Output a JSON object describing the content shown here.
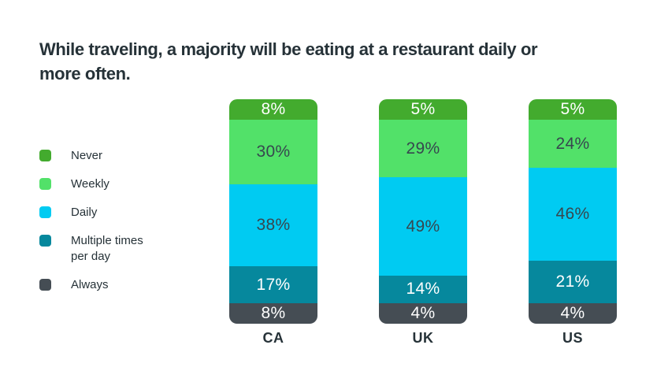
{
  "title": {
    "lines": [
      "While traveling, a majority will be eating at a restaurant daily or",
      "more often."
    ],
    "color": "#263238"
  },
  "legend": {
    "position": "left",
    "items": [
      {
        "label": "Never",
        "color": "#43AB2E"
      },
      {
        "label": "Weekly",
        "color": "#52E169"
      },
      {
        "label": "Daily",
        "color": "#00CBF2"
      },
      {
        "label": "Multiple times per day",
        "color": "#06889D"
      },
      {
        "label": "Always",
        "color": "#454D54"
      }
    ]
  },
  "chart_data": {
    "type": "bar",
    "stacked": true,
    "orientation": "vertical",
    "unit": "%",
    "grid": false,
    "value_axis": "none",
    "categories": [
      "CA",
      "UK",
      "US"
    ],
    "series": [
      {
        "name": "Never",
        "color": "#43AB2E",
        "label_color": "#FFFFFF",
        "values": [
          8,
          5,
          5
        ]
      },
      {
        "name": "Weekly",
        "color": "#52E169",
        "label_color": "#37474F",
        "values": [
          30,
          29,
          24
        ]
      },
      {
        "name": "Daily",
        "color": "#00CBF2",
        "label_color": "#37474F",
        "values": [
          38,
          49,
          46
        ]
      },
      {
        "name": "Multiple times per day",
        "color": "#06889D",
        "label_color": "#FFFFFF",
        "values": [
          17,
          14,
          21
        ]
      },
      {
        "name": "Always",
        "color": "#454D54",
        "label_color": "#FFFFFF",
        "values": [
          8,
          4,
          4
        ]
      }
    ],
    "segment_order_top_to_bottom": [
      "Never",
      "Weekly",
      "Daily",
      "Multiple times per day",
      "Always"
    ],
    "text_colors": {
      "dark_text": "#37474F",
      "light_text": "#FFFFFF"
    }
  }
}
